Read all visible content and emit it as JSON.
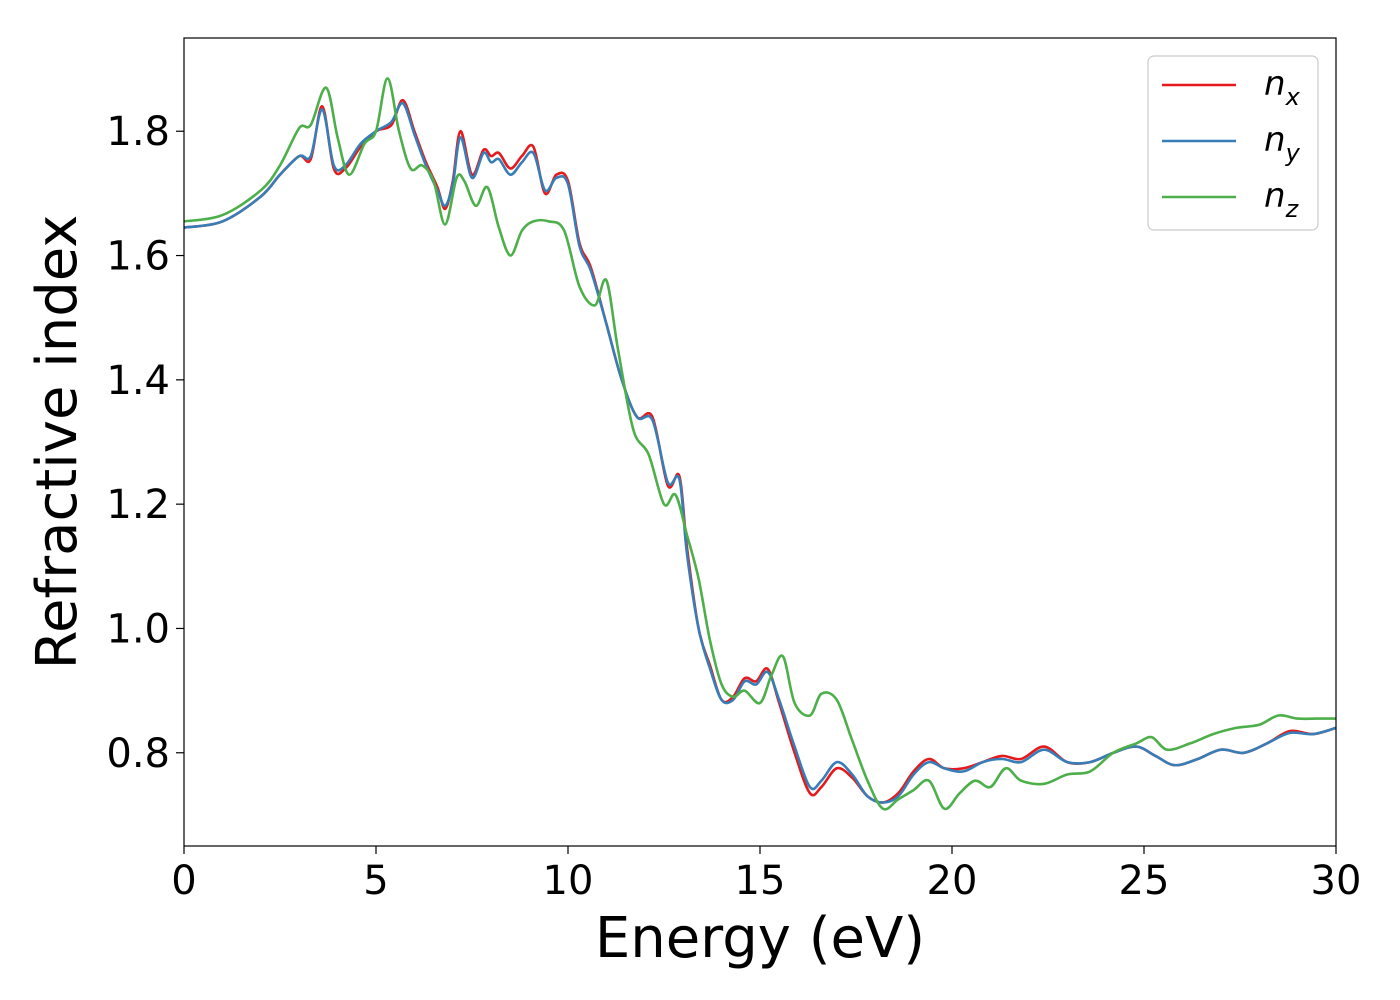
{
  "chart_data": {
    "type": "line",
    "xlabel": "Energy (eV)",
    "ylabel": "Refractive index",
    "xlim": [
      0,
      30
    ],
    "ylim": [
      0.65,
      1.95
    ],
    "xticks": [
      0,
      5,
      10,
      15,
      20,
      25,
      30
    ],
    "xtick_labels": [
      "0",
      "5",
      "10",
      "15",
      "20",
      "25",
      "30"
    ],
    "yticks": [
      0.8,
      1.0,
      1.2,
      1.4,
      1.6,
      1.8
    ],
    "ytick_labels": [
      "0.8",
      "1.0",
      "1.2",
      "1.4",
      "1.6",
      "1.8"
    ],
    "grid": false,
    "legend_position": "top-right",
    "series": [
      {
        "name": "n",
        "subscript": "x",
        "color": "#e41a1c",
        "x": [
          0,
          1,
          2,
          2.5,
          3,
          3.3,
          3.6,
          3.9,
          4.2,
          4.6,
          5,
          5.4,
          5.7,
          6,
          6.3,
          6.6,
          6.8,
          7.0,
          7.2,
          7.5,
          7.8,
          8.0,
          8.2,
          8.5,
          8.8,
          9.1,
          9.4,
          9.7,
          10.0,
          10.3,
          10.6,
          11.0,
          11.4,
          11.8,
          12.2,
          12.6,
          12.9,
          13.1,
          13.4,
          13.7,
          14.0,
          14.3,
          14.6,
          14.9,
          15.2,
          15.5,
          15.9,
          16.3,
          16.6,
          17.0,
          17.4,
          17.8,
          18.2,
          18.6,
          19.0,
          19.4,
          19.8,
          20.3,
          20.8,
          21.3,
          21.8,
          22.4,
          23.0,
          23.6,
          24.2,
          24.8,
          25.3,
          25.8,
          26.4,
          27.0,
          27.6,
          28.2,
          28.8,
          29.4,
          30
        ],
        "y": [
          1.645,
          1.655,
          1.695,
          1.73,
          1.76,
          1.755,
          1.84,
          1.74,
          1.74,
          1.775,
          1.8,
          1.81,
          1.85,
          1.8,
          1.75,
          1.71,
          1.675,
          1.72,
          1.8,
          1.73,
          1.77,
          1.76,
          1.765,
          1.74,
          1.76,
          1.775,
          1.7,
          1.73,
          1.72,
          1.62,
          1.58,
          1.49,
          1.4,
          1.34,
          1.34,
          1.23,
          1.245,
          1.13,
          1.0,
          0.94,
          0.885,
          0.89,
          0.92,
          0.915,
          0.935,
          0.88,
          0.8,
          0.735,
          0.745,
          0.775,
          0.76,
          0.73,
          0.72,
          0.735,
          0.77,
          0.79,
          0.775,
          0.775,
          0.785,
          0.795,
          0.79,
          0.81,
          0.785,
          0.785,
          0.8,
          0.81,
          0.795,
          0.78,
          0.79,
          0.805,
          0.8,
          0.815,
          0.835,
          0.83,
          0.84
        ]
      },
      {
        "name": "n",
        "subscript": "y",
        "color": "#377eb8",
        "x": [
          0,
          1,
          2,
          2.5,
          3,
          3.3,
          3.6,
          3.9,
          4.2,
          4.6,
          5,
          5.4,
          5.7,
          6,
          6.3,
          6.6,
          6.8,
          7.0,
          7.2,
          7.5,
          7.8,
          8.0,
          8.2,
          8.5,
          8.8,
          9.1,
          9.4,
          9.7,
          10.0,
          10.3,
          10.6,
          11.0,
          11.4,
          11.8,
          12.2,
          12.6,
          12.9,
          13.1,
          13.4,
          13.7,
          14.0,
          14.3,
          14.6,
          14.9,
          15.2,
          15.5,
          15.9,
          16.3,
          16.6,
          17.0,
          17.4,
          17.8,
          18.2,
          18.6,
          19.0,
          19.4,
          19.8,
          20.3,
          20.8,
          21.3,
          21.8,
          22.4,
          23.0,
          23.6,
          24.2,
          24.8,
          25.3,
          25.8,
          26.4,
          27.0,
          27.6,
          28.2,
          28.8,
          29.4,
          30
        ],
        "y": [
          1.645,
          1.655,
          1.695,
          1.73,
          1.76,
          1.76,
          1.835,
          1.745,
          1.745,
          1.78,
          1.8,
          1.815,
          1.845,
          1.795,
          1.745,
          1.705,
          1.68,
          1.715,
          1.79,
          1.725,
          1.765,
          1.75,
          1.755,
          1.73,
          1.75,
          1.765,
          1.705,
          1.725,
          1.715,
          1.615,
          1.575,
          1.49,
          1.4,
          1.34,
          1.335,
          1.235,
          1.24,
          1.12,
          1.0,
          0.935,
          0.885,
          0.885,
          0.915,
          0.91,
          0.93,
          0.885,
          0.81,
          0.745,
          0.755,
          0.785,
          0.765,
          0.73,
          0.72,
          0.73,
          0.765,
          0.785,
          0.775,
          0.77,
          0.785,
          0.79,
          0.785,
          0.805,
          0.785,
          0.785,
          0.8,
          0.81,
          0.795,
          0.78,
          0.79,
          0.805,
          0.8,
          0.815,
          0.832,
          0.83,
          0.84
        ]
      },
      {
        "name": "n",
        "subscript": "z",
        "color": "#4daf4a",
        "x": [
          0,
          1,
          2,
          2.5,
          3,
          3.3,
          3.7,
          4.0,
          4.3,
          4.7,
          5.0,
          5.3,
          5.6,
          5.9,
          6.2,
          6.5,
          6.8,
          7.1,
          7.3,
          7.6,
          7.9,
          8.2,
          8.5,
          8.8,
          9.1,
          9.5,
          9.9,
          10.3,
          10.7,
          11.0,
          11.3,
          11.7,
          12.1,
          12.5,
          12.8,
          13.1,
          13.4,
          13.7,
          14.0,
          14.3,
          14.6,
          15.0,
          15.3,
          15.6,
          15.9,
          16.3,
          16.6,
          17.0,
          17.4,
          17.8,
          18.2,
          18.6,
          19.0,
          19.4,
          19.8,
          20.2,
          20.6,
          21.0,
          21.4,
          21.8,
          22.4,
          23.0,
          23.6,
          24.2,
          24.8,
          25.2,
          25.6,
          26.2,
          26.8,
          27.4,
          28.0,
          28.5,
          29.0,
          29.5,
          30
        ],
        "y": [
          1.655,
          1.665,
          1.705,
          1.745,
          1.805,
          1.81,
          1.87,
          1.79,
          1.73,
          1.78,
          1.8,
          1.885,
          1.8,
          1.74,
          1.745,
          1.72,
          1.65,
          1.725,
          1.72,
          1.68,
          1.71,
          1.645,
          1.6,
          1.64,
          1.655,
          1.655,
          1.64,
          1.55,
          1.52,
          1.56,
          1.45,
          1.32,
          1.28,
          1.2,
          1.215,
          1.15,
          1.08,
          0.98,
          0.91,
          0.89,
          0.9,
          0.88,
          0.925,
          0.955,
          0.88,
          0.86,
          0.895,
          0.885,
          0.82,
          0.755,
          0.71,
          0.725,
          0.74,
          0.755,
          0.71,
          0.735,
          0.755,
          0.745,
          0.775,
          0.755,
          0.75,
          0.765,
          0.77,
          0.8,
          0.815,
          0.825,
          0.805,
          0.815,
          0.83,
          0.84,
          0.845,
          0.86,
          0.855,
          0.855,
          0.855
        ]
      }
    ]
  }
}
